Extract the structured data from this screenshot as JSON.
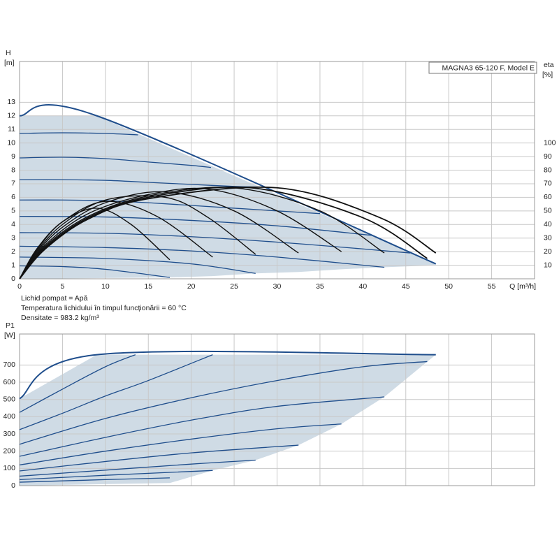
{
  "chart_data": [
    {
      "type": "line",
      "ylabel": "H",
      "yunit": "[m]",
      "y2label": "eta",
      "y2unit": "[%]",
      "xlabel": "Q [m³/h]",
      "legend_box": "MAGNA3 65-120 F, Model E",
      "notes": [
        "Lichid pompat = Apă",
        "Temperatura lichidului în timpul funcționării = 60 °C",
        "Densitate = 983.2 kg/m³"
      ],
      "xlim": [
        0,
        60
      ],
      "xticks": [
        0,
        5,
        10,
        15,
        20,
        25,
        30,
        35,
        40,
        45,
        50,
        55
      ],
      "ylim": [
        0,
        16
      ],
      "yticks": [
        0,
        1,
        2,
        3,
        4,
        5,
        6,
        7,
        8,
        9,
        10,
        11,
        12,
        13
      ],
      "y2lim": [
        0,
        160
      ],
      "y2ticks": [
        10,
        20,
        30,
        40,
        50,
        60,
        70,
        80,
        90,
        100
      ],
      "grid": true,
      "region": {
        "color": "#cfdbe5",
        "x": [
          0,
          9,
          48.5,
          48.5,
          42.5,
          37.5,
          32.5,
          27.5,
          22.5,
          17.5,
          0
        ],
        "values": [
          12,
          12,
          1.1,
          1.0,
          0.85,
          0.7,
          0.5,
          0.4,
          0.2,
          0.1,
          0
        ]
      },
      "series": [
        {
          "color": "#1f4e8c",
          "width": 2,
          "x": [
            0,
            9,
            48.5
          ],
          "values": [
            12,
            12,
            1.1
          ]
        },
        {
          "color": "#1f4e8c",
          "width": 1.3,
          "x": [
            0,
            5,
            10,
            13.8
          ],
          "values": [
            10.7,
            10.75,
            10.7,
            10.6
          ]
        },
        {
          "color": "#1f4e8c",
          "width": 1.3,
          "x": [
            0,
            5,
            10,
            15,
            20,
            22.3
          ],
          "values": [
            8.9,
            8.95,
            8.85,
            8.6,
            8.35,
            8.2
          ]
        },
        {
          "color": "#1f4e8c",
          "width": 1.3,
          "x": [
            0,
            5,
            10,
            15,
            20,
            25,
            28
          ],
          "values": [
            7.3,
            7.3,
            7.25,
            7.1,
            6.95,
            6.8,
            6.75
          ]
        },
        {
          "color": "#1f4e8c",
          "width": 1.3,
          "x": [
            0,
            5,
            10,
            15,
            20,
            25,
            30,
            35
          ],
          "values": [
            5.8,
            5.8,
            5.75,
            5.6,
            5.4,
            5.2,
            5.0,
            4.8
          ]
        },
        {
          "color": "#1f4e8c",
          "width": 1.3,
          "x": [
            0,
            10,
            20,
            30,
            41
          ],
          "values": [
            4.6,
            4.55,
            4.3,
            3.9,
            3.2
          ]
        },
        {
          "color": "#1f4e8c",
          "width": 1.3,
          "x": [
            0,
            10,
            20,
            30,
            40,
            45.5
          ],
          "values": [
            3.4,
            3.35,
            3.1,
            2.7,
            2.2,
            1.9
          ]
        },
        {
          "color": "#1f4e8c",
          "width": 1.3,
          "x": [
            0,
            10,
            20,
            30,
            42.5
          ],
          "values": [
            2.4,
            2.3,
            2.05,
            1.6,
            0.85
          ]
        },
        {
          "color": "#1f4e8c",
          "width": 1.3,
          "x": [
            0,
            10,
            20,
            27.5
          ],
          "values": [
            1.6,
            1.5,
            1.1,
            0.4
          ]
        },
        {
          "color": "#1f4e8c",
          "width": 1.3,
          "x": [
            0,
            5,
            10,
            17.5
          ],
          "values": [
            0.95,
            0.9,
            0.7,
            0.1
          ]
        },
        {
          "color": "#111111",
          "width": 1.4,
          "axis": "y2",
          "x": [
            0,
            2,
            5,
            9,
            13,
            17.5
          ],
          "values": [
            0,
            22,
            42,
            52,
            40,
            14
          ]
        },
        {
          "color": "#111111",
          "width": 1.4,
          "axis": "y2",
          "x": [
            0,
            2,
            5,
            10,
            16,
            22.5
          ],
          "values": [
            0,
            21,
            42,
            57,
            46,
            16
          ]
        },
        {
          "color": "#111111",
          "width": 1.4,
          "axis": "y2",
          "x": [
            0,
            2,
            5,
            10,
            17,
            22,
            27.5
          ],
          "values": [
            0,
            20,
            40,
            58,
            60,
            45,
            18
          ]
        },
        {
          "color": "#111111",
          "width": 1.4,
          "axis": "y2",
          "x": [
            0,
            2,
            5,
            10,
            17,
            25,
            32.5
          ],
          "values": [
            0,
            19,
            38,
            56,
            64,
            50,
            19
          ]
        },
        {
          "color": "#111111",
          "width": 1.4,
          "axis": "y2",
          "x": [
            0,
            3,
            8,
            15,
            22,
            30,
            37.5
          ],
          "values": [
            0,
            25,
            48,
            62,
            66,
            50,
            20
          ]
        },
        {
          "color": "#111111",
          "width": 1.4,
          "axis": "y2",
          "x": [
            0,
            3,
            8,
            15,
            25,
            35,
            42.5
          ],
          "values": [
            0,
            24,
            46,
            61,
            67,
            50,
            19
          ]
        },
        {
          "color": "#111111",
          "width": 1.8,
          "axis": "y2",
          "x": [
            0,
            3,
            8,
            15,
            27,
            40,
            47.5
          ],
          "values": [
            0,
            23,
            45,
            60,
            67,
            45,
            15
          ]
        },
        {
          "color": "#111111",
          "width": 1.8,
          "axis": "y2",
          "x": [
            0,
            3,
            8,
            15,
            30,
            42,
            48.5
          ],
          "values": [
            0,
            22,
            44,
            59,
            67,
            45,
            19
          ]
        }
      ]
    },
    {
      "type": "line",
      "ylabel": "P1",
      "yunit": "[W]",
      "xlim": [
        0,
        60
      ],
      "xgrid": [
        5,
        10,
        15,
        20,
        25,
        30,
        35,
        40,
        45,
        50,
        55
      ],
      "ylim": [
        0,
        880
      ],
      "yticks": [
        0,
        100,
        200,
        300,
        400,
        500,
        600,
        700
      ],
      "grid": true,
      "region": {
        "color": "#cfdbe5",
        "x": [
          0,
          9,
          48.5,
          47.5,
          42.5,
          37.5,
          32.5,
          27.5,
          22.5,
          17.5,
          0
        ],
        "values": [
          505,
          760,
          760,
          720,
          515,
          358,
          235,
          148,
          88,
          15,
          0
        ]
      },
      "series": [
        {
          "color": "#1f4e8c",
          "width": 2,
          "x": [
            0,
            9,
            48.5
          ],
          "values": [
            505,
            760,
            760
          ]
        },
        {
          "color": "#1f4e8c",
          "width": 1.3,
          "x": [
            0,
            5,
            10,
            13.5
          ],
          "values": [
            425,
            560,
            690,
            760
          ]
        },
        {
          "color": "#1f4e8c",
          "width": 1.3,
          "x": [
            0,
            5,
            10,
            15,
            22.5
          ],
          "values": [
            325,
            420,
            520,
            610,
            760
          ]
        },
        {
          "color": "#1f4e8c",
          "width": 1.3,
          "x": [
            0,
            10,
            20,
            30,
            40,
            47.5
          ],
          "values": [
            240,
            390,
            510,
            610,
            690,
            720
          ]
        },
        {
          "color": "#1f4e8c",
          "width": 1.3,
          "x": [
            0,
            10,
            20,
            30,
            42.5
          ],
          "values": [
            170,
            280,
            380,
            460,
            515
          ]
        },
        {
          "color": "#1f4e8c",
          "width": 1.3,
          "x": [
            0,
            10,
            20,
            30,
            37.5
          ],
          "values": [
            120,
            200,
            270,
            330,
            358
          ]
        },
        {
          "color": "#1f4e8c",
          "width": 1.3,
          "x": [
            0,
            10,
            20,
            32.5
          ],
          "values": [
            85,
            140,
            190,
            235
          ]
        },
        {
          "color": "#1f4e8c",
          "width": 1.3,
          "x": [
            0,
            10,
            20,
            27.5
          ],
          "values": [
            55,
            90,
            125,
            148
          ]
        },
        {
          "color": "#1f4e8c",
          "width": 1.3,
          "x": [
            0,
            10,
            22.5
          ],
          "values": [
            35,
            60,
            88
          ]
        },
        {
          "color": "#1f4e8c",
          "width": 1.3,
          "x": [
            0,
            10,
            17.5
          ],
          "values": [
            20,
            35,
            45
          ]
        }
      ]
    }
  ]
}
